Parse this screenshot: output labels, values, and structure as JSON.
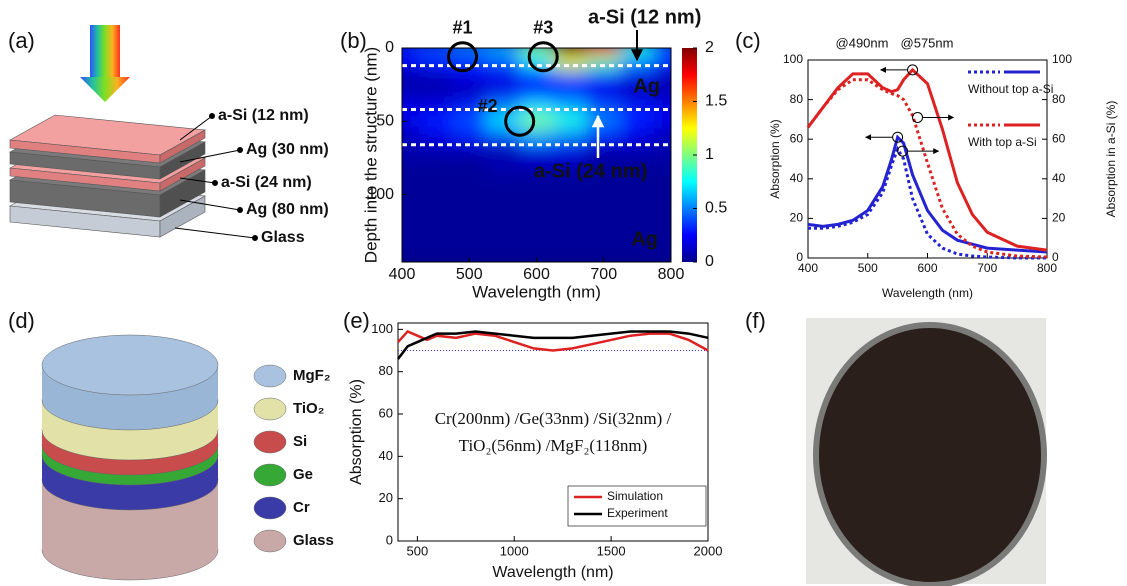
{
  "panels": {
    "a": {
      "label": "(a)",
      "layers": [
        "a-Si (12 nm)",
        "Ag (30 nm)",
        "a-Si (24 nm)",
        "Ag (80 nm)",
        "Glass"
      ]
    },
    "d": {
      "label": "(d)",
      "legend": [
        "MgF₂",
        "TiO₂",
        "Si",
        "Ge",
        "Cr",
        "Glass"
      ]
    },
    "f": {
      "label": "(f)"
    }
  },
  "chart_data": [
    {
      "type": "heatmap",
      "panel_label": "(b)",
      "xlabel": "Wavelength (nm)",
      "ylabel": "Depth into the structure (nm)",
      "x": [
        400,
        450,
        500,
        550,
        600,
        650,
        700,
        750,
        800
      ],
      "y": [
        0,
        10,
        20,
        30,
        40,
        50,
        60,
        70,
        80,
        90,
        100,
        110,
        120,
        130,
        140
      ],
      "values": [
        [
          0.3,
          0.4,
          0.5,
          0.6,
          1.0,
          2.0,
          1.6,
          0.8,
          0.4
        ],
        [
          0.2,
          0.3,
          0.3,
          0.4,
          0.7,
          1.2,
          0.9,
          0.5,
          0.3
        ],
        [
          0.1,
          0.1,
          0.2,
          0.2,
          0.3,
          0.4,
          0.3,
          0.2,
          0.1
        ],
        [
          0.1,
          0.1,
          0.1,
          0.2,
          0.3,
          0.3,
          0.2,
          0.1,
          0.1
        ],
        [
          0.2,
          0.2,
          0.3,
          0.5,
          0.7,
          0.6,
          0.4,
          0.3,
          0.2
        ],
        [
          0.2,
          0.3,
          0.4,
          0.7,
          1.0,
          0.8,
          0.5,
          0.3,
          0.2
        ],
        [
          0.1,
          0.2,
          0.3,
          0.4,
          0.6,
          0.5,
          0.3,
          0.2,
          0.1
        ],
        [
          0.1,
          0.1,
          0.1,
          0.1,
          0.2,
          0.2,
          0.1,
          0.1,
          0.1
        ],
        [
          0.05,
          0.05,
          0.05,
          0.1,
          0.1,
          0.1,
          0.05,
          0.05,
          0.05
        ],
        [
          0.05,
          0.05,
          0.05,
          0.05,
          0.05,
          0.05,
          0.05,
          0.05,
          0.05
        ],
        [
          0.05,
          0.05,
          0.05,
          0.05,
          0.05,
          0.05,
          0.05,
          0.05,
          0.05
        ],
        [
          0.05,
          0.05,
          0.05,
          0.05,
          0.05,
          0.05,
          0.05,
          0.05,
          0.05
        ],
        [
          0.05,
          0.05,
          0.05,
          0.05,
          0.05,
          0.05,
          0.05,
          0.05,
          0.05
        ],
        [
          0.05,
          0.05,
          0.05,
          0.05,
          0.05,
          0.05,
          0.05,
          0.05,
          0.05
        ],
        [
          0.05,
          0.05,
          0.05,
          0.05,
          0.05,
          0.05,
          0.05,
          0.05,
          0.05
        ]
      ],
      "xlim": [
        400,
        800
      ],
      "xticks": [
        400,
        500,
        600,
        700,
        800
      ],
      "ylim": [
        0,
        146
      ],
      "yticks": [
        0,
        50,
        100
      ],
      "y_inverted": true,
      "zlim": [
        0,
        2
      ],
      "zticks": [
        0,
        0.5,
        1,
        1.5,
        2
      ],
      "colormap": "jet",
      "layer_boundaries": [
        12,
        42,
        66
      ],
      "markers": [
        {
          "label": "#1",
          "x": 490,
          "y": 6
        },
        {
          "label": "#3",
          "x": 610,
          "y": 6
        },
        {
          "label": "#2",
          "x": 575,
          "y": 50
        }
      ],
      "labels": [
        "a-Si (12 nm)",
        "Ag",
        "a-Si (24 nm)",
        "Ag"
      ]
    },
    {
      "type": "line",
      "panel_label": "(c)",
      "xlabel": "Wavelength (nm)",
      "ylabel": "Absorption (%)",
      "y2label": "Absorption in a-Si (%)",
      "annotations": [
        "@490nm",
        "@575nm"
      ],
      "x": [
        400,
        425,
        450,
        475,
        500,
        525,
        540,
        550,
        560,
        575,
        600,
        625,
        650,
        675,
        700,
        750,
        800
      ],
      "series": [
        {
          "name": "Without top a-Si",
          "color": "#2323d2",
          "values": [
            17,
            16,
            17,
            19,
            24,
            36,
            50,
            61,
            58,
            42,
            24,
            14,
            9,
            7,
            5,
            4,
            3
          ],
          "y2_values": [
            15,
            15,
            16,
            18,
            22,
            33,
            47,
            55,
            50,
            30,
            12,
            5,
            2,
            1,
            0.5,
            0,
            0
          ]
        },
        {
          "name": "With top a-Si",
          "color": "#dd2222",
          "values": [
            66,
            76,
            86,
            93,
            93,
            86,
            84,
            85,
            90,
            95,
            88,
            65,
            38,
            22,
            13,
            6,
            4
          ],
          "y2_values": [
            66,
            76,
            85,
            90,
            90,
            85,
            83,
            82,
            80,
            72,
            48,
            25,
            12,
            6,
            3,
            1,
            0.5
          ]
        }
      ],
      "xlim": [
        400,
        800
      ],
      "xticks": [
        400,
        500,
        600,
        700,
        800
      ],
      "ylim": [
        0,
        100
      ],
      "yticks": [
        0,
        20,
        40,
        60,
        80,
        100
      ],
      "y2lim": [
        0,
        100
      ],
      "y2ticks": [
        0,
        20,
        40,
        60,
        80,
        100
      ]
    },
    {
      "type": "line",
      "panel_label": "(e)",
      "xlabel": "Wavelength (nm)",
      "ylabel": "Absorption (%)",
      "annotations": [
        "Cr(200nm) /Ge(33nm) /Si(32nm) /",
        "TiO₂(56nm) /MgF₂(118nm)"
      ],
      "x": [
        400,
        450,
        500,
        550,
        600,
        700,
        800,
        900,
        1000,
        1100,
        1200,
        1300,
        1400,
        1500,
        1600,
        1700,
        1800,
        1900,
        2000
      ],
      "series": [
        {
          "name": "Simulation",
          "color": "#dd2222",
          "values": [
            94,
            99,
            97,
            95,
            97,
            96,
            98,
            97,
            94,
            91,
            90,
            91,
            93,
            95,
            97,
            98,
            98,
            95,
            90
          ]
        },
        {
          "name": "Experiment",
          "color": "#000000",
          "values": [
            86,
            92,
            94,
            96,
            98,
            98,
            99,
            98,
            97,
            96,
            96,
            96,
            97,
            98,
            99,
            99,
            99,
            98,
            96
          ]
        }
      ],
      "reference_line": {
        "value": 90,
        "color": "#3333ff"
      },
      "xlim": [
        400,
        2000
      ],
      "xticks": [
        500,
        1000,
        1500,
        2000
      ],
      "ylim": [
        0,
        103
      ],
      "yticks": [
        0,
        20,
        40,
        60,
        80,
        100
      ],
      "legend": "lower right"
    }
  ]
}
